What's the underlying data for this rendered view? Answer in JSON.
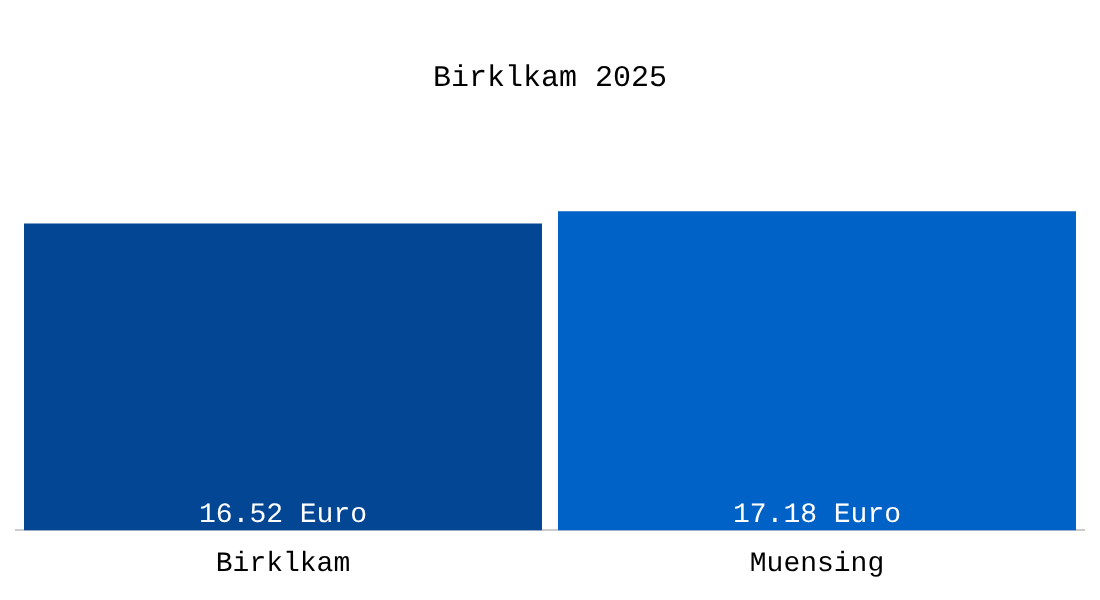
{
  "chart_data": {
    "type": "bar",
    "title": "Birklkam 2025",
    "categories": [
      "Birklkam",
      "Muensing"
    ],
    "values": [
      16.52,
      17.18
    ],
    "colors": [
      "#034694",
      "#0061c6"
    ],
    "value_labels": [
      "16.52 Euro",
      "17.18 Euro"
    ],
    "tick_labels": "x",
    "grid": false,
    "legend": false
  }
}
